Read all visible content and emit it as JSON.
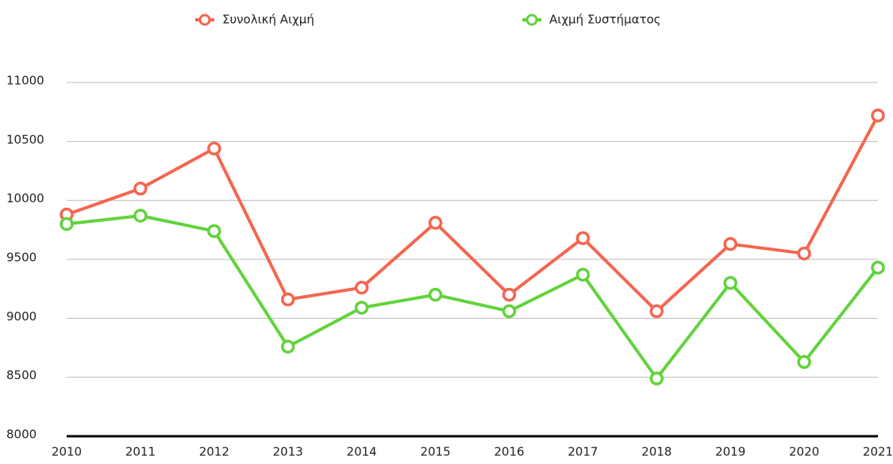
{
  "chart_data": {
    "type": "line",
    "categories": [
      "2010",
      "2011",
      "2012",
      "2013",
      "2014",
      "2015",
      "2016",
      "2017",
      "2018",
      "2019",
      "2020",
      "2021"
    ],
    "series": [
      {
        "name": "Συνολική Αιχμή",
        "color": "#f4664f",
        "values": [
          9880,
          10100,
          10440,
          9160,
          9260,
          9810,
          9200,
          9680,
          9060,
          9630,
          9550,
          10720
        ]
      },
      {
        "name": "Αιχμή Συστήματος",
        "color": "#62d33c",
        "values": [
          9800,
          9870,
          9740,
          8760,
          9090,
          9200,
          9060,
          9370,
          8490,
          9300,
          8630,
          9430
        ]
      }
    ],
    "ylim": [
      8000,
      11000
    ],
    "yticks": [
      8000,
      8500,
      9000,
      9500,
      10000,
      10500,
      11000
    ],
    "grid": true,
    "legend": "top"
  }
}
